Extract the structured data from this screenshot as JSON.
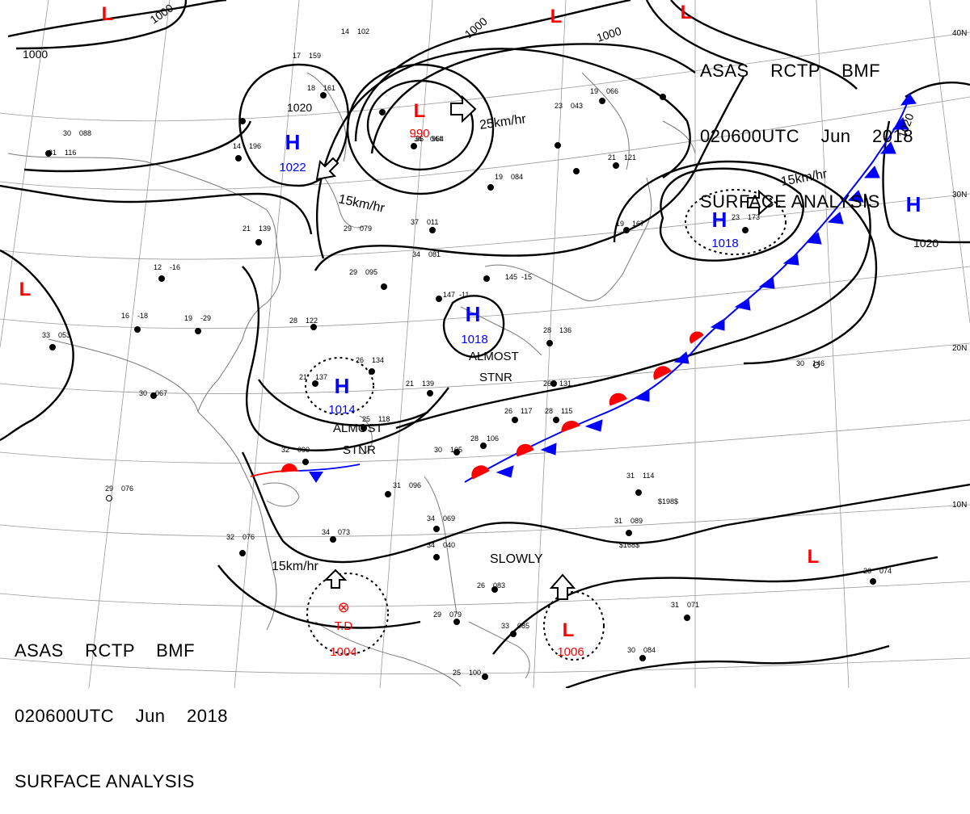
{
  "header": {
    "line1": "ASAS    RCTP    BMF",
    "line2": "020600UTC    Jun    2018",
    "line3": "SURFACE ANALYSIS"
  },
  "colors": {
    "isobar": "#000000",
    "high": "#0000ff",
    "low": "#ff0000",
    "warm_front": "#ff0000",
    "cold_front": "#0000ff",
    "grid": "#9a9a9a",
    "coast": "#7a7a7a"
  },
  "latitude_labels": [
    "40N",
    "30N",
    "20N",
    "10N"
  ],
  "isobar_labels": [
    "1000",
    "1000",
    "1000",
    "1000",
    "1020",
    "1020",
    "1020"
  ],
  "pressure_centers": [
    {
      "symbol": "L",
      "value": "990",
      "kind": "low"
    },
    {
      "symbol": "H",
      "value": "1022",
      "kind": "high"
    },
    {
      "symbol": "H",
      "value": "1018",
      "kind": "high"
    },
    {
      "symbol": "H",
      "value": "1018",
      "kind": "high"
    },
    {
      "symbol": "H",
      "value": "1014",
      "kind": "high"
    },
    {
      "symbol": "H",
      "value": "",
      "kind": "high"
    },
    {
      "symbol": "L",
      "value": "1006",
      "kind": "low"
    },
    {
      "symbol": "L",
      "value": "",
      "kind": "low"
    },
    {
      "symbol": "L",
      "value": "",
      "kind": "low"
    },
    {
      "symbol": "L",
      "value": "",
      "kind": "low"
    },
    {
      "symbol": "L",
      "value": "",
      "kind": "low"
    },
    {
      "symbol": "L",
      "value": "",
      "kind": "low"
    }
  ],
  "tropical_depression": {
    "label": "T.D",
    "value": "1004"
  },
  "motion_annotations": [
    "25km/hr",
    "15km/hr",
    "15km/hr",
    "15km/hr",
    "SLOWLY"
  ],
  "system_notes": [
    "ALMOST",
    "STNR",
    "ALMOST",
    "STNR"
  ],
  "station_plots": [
    {
      "t": "26",
      "p": "131"
    },
    {
      "t": "30",
      "p": "146"
    },
    {
      "t": "31",
      "p": "114"
    },
    {
      "t": "31",
      "p": "089"
    },
    {
      "t": "26",
      "p": "074"
    },
    {
      "t": "31",
      "p": "071"
    },
    {
      "t": "30",
      "p": "084"
    },
    {
      "t": "29",
      "p": "095"
    },
    {
      "t": "28",
      "p": "122"
    },
    {
      "t": "21",
      "p": "139"
    },
    {
      "t": "21",
      "p": "137"
    },
    {
      "t": "26",
      "p": "134"
    },
    {
      "t": "25",
      "p": "118"
    },
    {
      "t": "32",
      "p": "090"
    },
    {
      "t": "31",
      "p": "096"
    },
    {
      "t": "29",
      "p": "076"
    },
    {
      "t": "32",
      "p": "076"
    },
    {
      "t": "34",
      "p": "073"
    },
    {
      "t": "33",
      "p": "053"
    },
    {
      "t": "30",
      "p": "067"
    },
    {
      "t": "30",
      "p": "088"
    },
    {
      "t": "19",
      "p": "084"
    },
    {
      "t": "37",
      "p": "011"
    },
    {
      "t": "34",
      "p": "044"
    },
    {
      "t": "35",
      "p": "964"
    },
    {
      "t": "29",
      "p": "079"
    },
    {
      "t": "14",
      "p": "196"
    },
    {
      "t": "18",
      "p": "161"
    },
    {
      "t": "26",
      "p": "117"
    },
    {
      "t": "28",
      "p": "115"
    },
    {
      "t": "28",
      "p": "106"
    },
    {
      "t": "30",
      "p": "105"
    },
    {
      "t": "34",
      "p": "069"
    },
    {
      "t": "34",
      "p": "040"
    },
    {
      "t": "26",
      "p": "083"
    },
    {
      "t": "29",
      "p": "079"
    },
    {
      "t": "25",
      "p": "100"
    },
    {
      "t": "33",
      "p": "085"
    },
    {
      "t": "21",
      "p": "139"
    },
    {
      "t": "28",
      "p": "136"
    },
    {
      "t": "19",
      "p": "167"
    },
    {
      "t": "23",
      "p": "173"
    },
    {
      "t": "145",
      "p": "-15"
    },
    {
      "t": "147",
      "p": "-11"
    },
    {
      "t": "12",
      "p": "-16"
    },
    {
      "t": "16",
      "p": "-18"
    },
    {
      "t": "19",
      "p": "-29"
    },
    {
      "t": "14",
      "p": "102"
    },
    {
      "t": "17",
      "p": "159"
    },
    {
      "t": "31",
      "p": "116"
    },
    {
      "t": "34",
      "p": "081"
    },
    {
      "t": "21",
      "p": "121"
    },
    {
      "t": "19",
      "p": "066"
    },
    {
      "t": "23",
      "p": "043"
    },
    {
      "t": "-",
      "p": "$198$"
    },
    {
      "t": "-",
      "p": "$168$"
    }
  ]
}
